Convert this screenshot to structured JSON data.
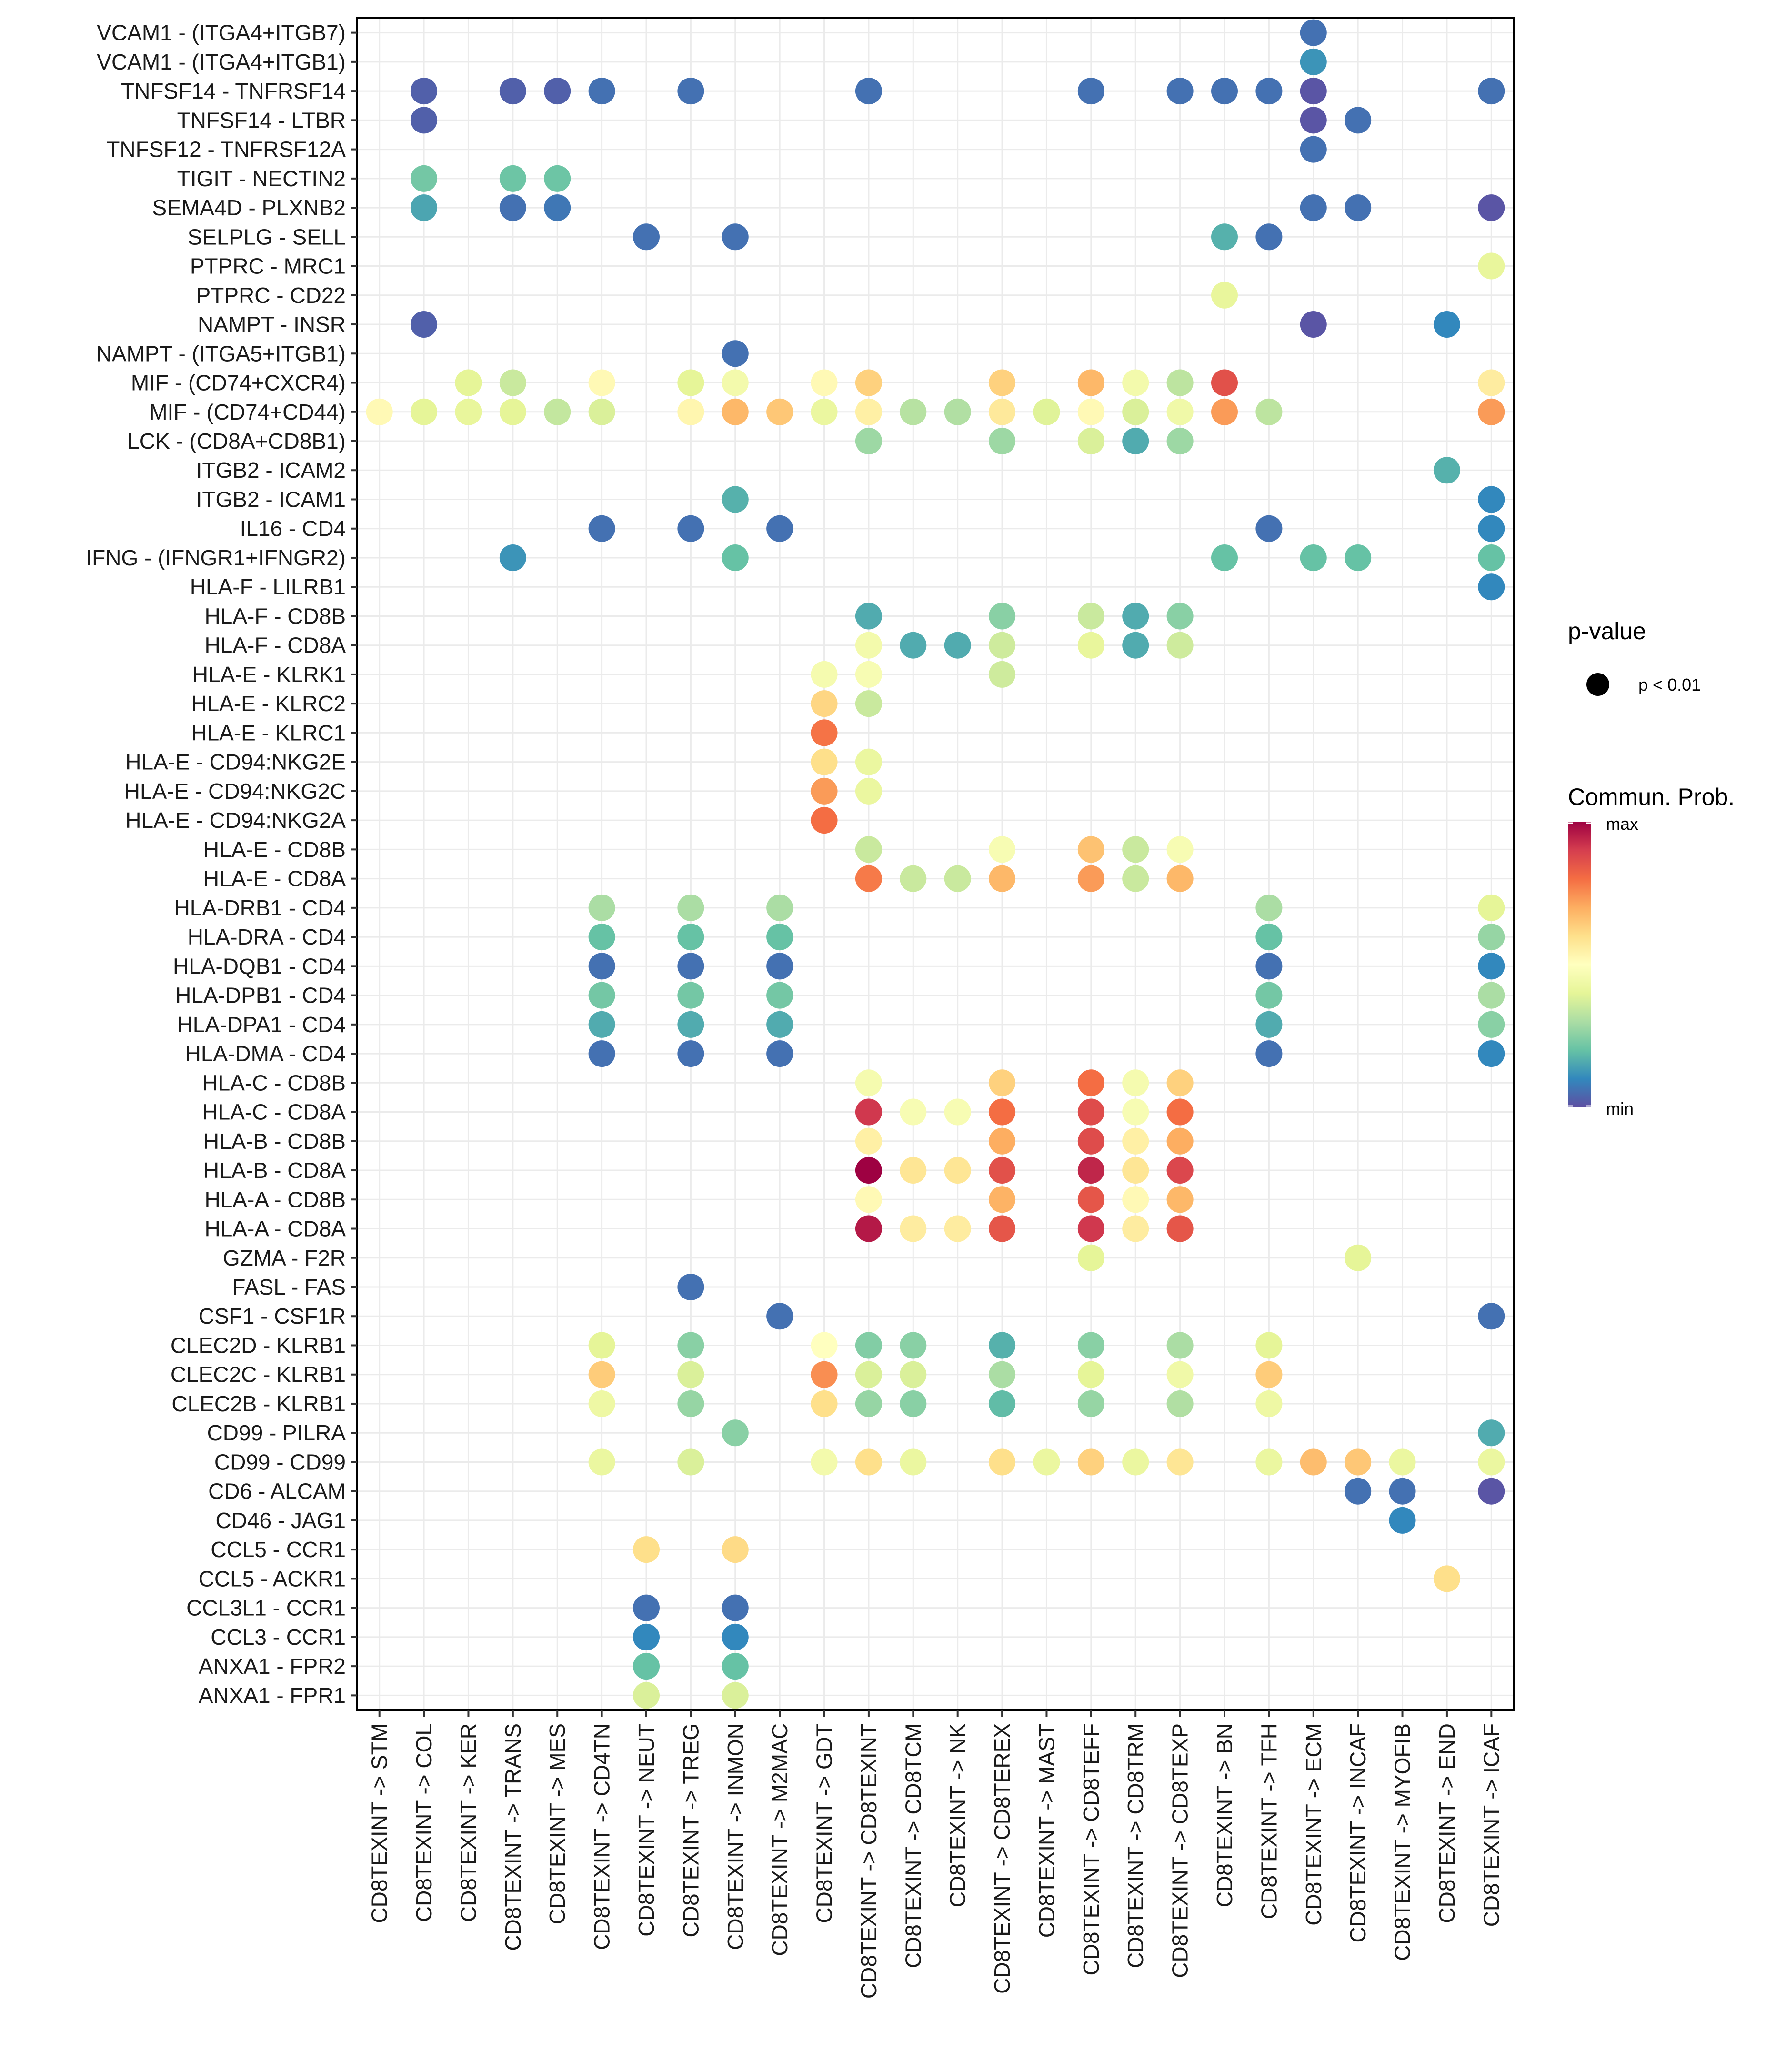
{
  "chart_data": {
    "type": "scatter",
    "subtype": "dot-matrix",
    "title": "",
    "xlabel": "",
    "ylabel": "",
    "grid": true,
    "x_categories": [
      "CD8TEXINT -> STM",
      "CD8TEXINT -> COL",
      "CD8TEXINT -> KER",
      "CD8TEXINT -> TRANS",
      "CD8TEXINT -> MES",
      "CD8TEXINT -> CD4TN",
      "CD8TEXINT -> NEUT",
      "CD8TEXINT -> TREG",
      "CD8TEXINT -> INMON",
      "CD8TEXINT -> M2MAC",
      "CD8TEXINT -> GDT",
      "CD8TEXINT -> CD8TEXINT",
      "CD8TEXINT -> CD8TCM",
      "CD8TEXINT -> NK",
      "CD8TEXINT -> CD8TEREX",
      "CD8TEXINT -> MAST",
      "CD8TEXINT -> CD8TEFF",
      "CD8TEXINT -> CD8TRM",
      "CD8TEXINT -> CD8TEXP",
      "CD8TEXINT -> BN",
      "CD8TEXINT -> TFH",
      "CD8TEXINT -> ECM",
      "CD8TEXINT -> INCAF",
      "CD8TEXINT -> MYOFIB",
      "CD8TEXINT -> END",
      "CD8TEXINT -> ICAF"
    ],
    "y_categories_top_to_bottom": [
      "VCAM1 - (ITGA4+ITGB7)",
      "VCAM1 - (ITGA4+ITGB1)",
      "TNFSF14 - TNFRSF14",
      "TNFSF14 - LTBR",
      "TNFSF12 - TNFRSF12A",
      "TIGIT - NECTIN2",
      "SEMA4D - PLXNB2",
      "SELPLG - SELL",
      "PTPRC - MRC1",
      "PTPRC - CD22",
      "NAMPT - INSR",
      "NAMPT - (ITGA5+ITGB1)",
      "MIF - (CD74+CXCR4)",
      "MIF - (CD74+CD44)",
      "LCK - (CD8A+CD8B1)",
      "ITGB2 - ICAM2",
      "ITGB2 - ICAM1",
      "IL16 - CD4",
      "IFNG - (IFNGR1+IFNGR2)",
      "HLA-F - LILRB1",
      "HLA-F - CD8B",
      "HLA-F - CD8A",
      "HLA-E - KLRK1",
      "HLA-E - KLRC2",
      "HLA-E - KLRC1",
      "HLA-E - CD94:NKG2E",
      "HLA-E - CD94:NKG2C",
      "HLA-E - CD94:NKG2A",
      "HLA-E - CD8B",
      "HLA-E - CD8A",
      "HLA-DRB1 - CD4",
      "HLA-DRA - CD4",
      "HLA-DQB1 - CD4",
      "HLA-DPB1 - CD4",
      "HLA-DPA1 - CD4",
      "HLA-DMA - CD4",
      "HLA-C - CD8B",
      "HLA-C - CD8A",
      "HLA-B - CD8B",
      "HLA-B - CD8A",
      "HLA-A - CD8B",
      "HLA-A - CD8A",
      "GZMA - F2R",
      "FASL - FAS",
      "CSF1 - CSF1R",
      "CLEC2D - KLRB1",
      "CLEC2C - KLRB1",
      "CLEC2B - KLRB1",
      "CD99 - PILRA",
      "CD99 - CD99",
      "CD6 - ALCAM",
      "CD46 - JAG1",
      "CCL5 - CCR1",
      "CCL5 - ACKR1",
      "CCL3L1 - CCR1",
      "CCL3 - CCR1",
      "ANXA1 - FPR2",
      "ANXA1 - FPR1"
    ],
    "value_scale": "normalized communication probability (0 = min, 1 = max)",
    "points_by_row": [
      [
        [
          21,
          0.06
        ]
      ],
      [
        [
          21,
          0.12
        ]
      ],
      [
        [
          1,
          0.03
        ],
        [
          3,
          0.03
        ],
        [
          4,
          0.03
        ],
        [
          5,
          0.06
        ],
        [
          7,
          0.06
        ],
        [
          11,
          0.06
        ],
        [
          16,
          0.06
        ],
        [
          18,
          0.06
        ],
        [
          19,
          0.06
        ],
        [
          20,
          0.06
        ],
        [
          21,
          0.01
        ],
        [
          25,
          0.06
        ]
      ],
      [
        [
          1,
          0.03
        ],
        [
          21,
          0.01
        ],
        [
          22,
          0.06
        ]
      ],
      [
        [
          21,
          0.06
        ]
      ],
      [
        [
          1,
          0.22
        ],
        [
          3,
          0.21
        ],
        [
          4,
          0.21
        ]
      ],
      [
        [
          1,
          0.15
        ],
        [
          3,
          0.06
        ],
        [
          4,
          0.07
        ],
        [
          21,
          0.06
        ],
        [
          22,
          0.06
        ],
        [
          25,
          0.01
        ]
      ],
      [
        [
          6,
          0.06
        ],
        [
          8,
          0.06
        ],
        [
          19,
          0.17
        ],
        [
          20,
          0.06
        ]
      ],
      [
        [
          25,
          0.41
        ]
      ],
      [
        [
          19,
          0.41
        ]
      ],
      [
        [
          1,
          0.03
        ],
        [
          21,
          0.01
        ],
        [
          24,
          0.1
        ]
      ],
      [
        [
          8,
          0.06
        ]
      ],
      [
        [
          2,
          0.4
        ],
        [
          3,
          0.35
        ],
        [
          5,
          0.52
        ],
        [
          7,
          0.4
        ],
        [
          8,
          0.45
        ],
        [
          10,
          0.52
        ],
        [
          11,
          0.63
        ],
        [
          14,
          0.63
        ],
        [
          16,
          0.68
        ],
        [
          17,
          0.45
        ],
        [
          18,
          0.33
        ],
        [
          19,
          0.86
        ],
        [
          25,
          0.56
        ]
      ],
      [
        [
          0,
          0.52
        ],
        [
          1,
          0.4
        ],
        [
          2,
          0.41
        ],
        [
          3,
          0.4
        ],
        [
          4,
          0.34
        ],
        [
          5,
          0.38
        ],
        [
          7,
          0.53
        ],
        [
          8,
          0.68
        ],
        [
          9,
          0.65
        ],
        [
          10,
          0.42
        ],
        [
          11,
          0.55
        ],
        [
          12,
          0.32
        ],
        [
          13,
          0.31
        ],
        [
          14,
          0.57
        ],
        [
          15,
          0.39
        ],
        [
          16,
          0.52
        ],
        [
          17,
          0.38
        ],
        [
          18,
          0.44
        ],
        [
          19,
          0.73
        ],
        [
          20,
          0.33
        ],
        [
          25,
          0.73
        ]
      ],
      [
        [
          11,
          0.28
        ],
        [
          14,
          0.28
        ],
        [
          16,
          0.38
        ],
        [
          17,
          0.16
        ],
        [
          18,
          0.28
        ]
      ],
      [
        [
          24,
          0.17
        ]
      ],
      [
        [
          8,
          0.17
        ],
        [
          25,
          0.1
        ]
      ],
      [
        [
          5,
          0.06
        ],
        [
          7,
          0.06
        ],
        [
          9,
          0.06
        ],
        [
          20,
          0.06
        ],
        [
          25,
          0.1
        ]
      ],
      [
        [
          3,
          0.12
        ],
        [
          8,
          0.2
        ],
        [
          19,
          0.2
        ],
        [
          21,
          0.2
        ],
        [
          22,
          0.2
        ],
        [
          25,
          0.2
        ]
      ],
      [
        [
          25,
          0.1
        ]
      ],
      [
        [
          11,
          0.16
        ],
        [
          14,
          0.25
        ],
        [
          16,
          0.35
        ],
        [
          17,
          0.16
        ],
        [
          18,
          0.25
        ]
      ],
      [
        [
          11,
          0.45
        ],
        [
          12,
          0.16
        ],
        [
          13,
          0.16
        ],
        [
          14,
          0.36
        ],
        [
          16,
          0.41
        ],
        [
          17,
          0.16
        ],
        [
          18,
          0.36
        ]
      ],
      [
        [
          10,
          0.46
        ],
        [
          11,
          0.47
        ],
        [
          14,
          0.36
        ]
      ],
      [
        [
          10,
          0.62
        ],
        [
          11,
          0.35
        ]
      ],
      [
        [
          10,
          0.79
        ]
      ],
      [
        [
          10,
          0.6
        ],
        [
          11,
          0.42
        ]
      ],
      [
        [
          10,
          0.73
        ],
        [
          11,
          0.42
        ]
      ],
      [
        [
          10,
          0.8
        ]
      ],
      [
        [
          11,
          0.35
        ],
        [
          14,
          0.47
        ],
        [
          16,
          0.66
        ],
        [
          17,
          0.35
        ],
        [
          18,
          0.47
        ]
      ],
      [
        [
          11,
          0.78
        ],
        [
          12,
          0.35
        ],
        [
          13,
          0.35
        ],
        [
          14,
          0.68
        ],
        [
          16,
          0.73
        ],
        [
          17,
          0.35
        ],
        [
          18,
          0.68
        ]
      ],
      [
        [
          5,
          0.3
        ],
        [
          7,
          0.3
        ],
        [
          9,
          0.3
        ],
        [
          20,
          0.3
        ],
        [
          25,
          0.4
        ]
      ],
      [
        [
          5,
          0.2
        ],
        [
          7,
          0.2
        ],
        [
          9,
          0.2
        ],
        [
          20,
          0.2
        ],
        [
          25,
          0.27
        ]
      ],
      [
        [
          5,
          0.06
        ],
        [
          7,
          0.06
        ],
        [
          9,
          0.06
        ],
        [
          20,
          0.06
        ],
        [
          25,
          0.1
        ]
      ],
      [
        [
          5,
          0.22
        ],
        [
          7,
          0.22
        ],
        [
          9,
          0.22
        ],
        [
          20,
          0.22
        ],
        [
          25,
          0.3
        ]
      ],
      [
        [
          5,
          0.16
        ],
        [
          7,
          0.16
        ],
        [
          9,
          0.16
        ],
        [
          20,
          0.16
        ],
        [
          25,
          0.25
        ]
      ],
      [
        [
          5,
          0.06
        ],
        [
          7,
          0.06
        ],
        [
          9,
          0.06
        ],
        [
          20,
          0.06
        ],
        [
          25,
          0.1
        ]
      ],
      [
        [
          11,
          0.46
        ],
        [
          14,
          0.63
        ],
        [
          16,
          0.8
        ],
        [
          17,
          0.46
        ],
        [
          18,
          0.63
        ]
      ],
      [
        [
          11,
          0.91
        ],
        [
          12,
          0.47
        ],
        [
          13,
          0.47
        ],
        [
          14,
          0.8
        ],
        [
          16,
          0.87
        ],
        [
          17,
          0.47
        ],
        [
          18,
          0.8
        ]
      ],
      [
        [
          11,
          0.55
        ],
        [
          14,
          0.7
        ],
        [
          16,
          0.87
        ],
        [
          17,
          0.55
        ],
        [
          18,
          0.7
        ]
      ],
      [
        [
          11,
          1.0
        ],
        [
          12,
          0.58
        ],
        [
          13,
          0.58
        ],
        [
          14,
          0.86
        ],
        [
          16,
          0.94
        ],
        [
          17,
          0.58
        ],
        [
          18,
          0.88
        ]
      ],
      [
        [
          11,
          0.52
        ],
        [
          14,
          0.69
        ],
        [
          16,
          0.85
        ],
        [
          17,
          0.52
        ],
        [
          18,
          0.68
        ]
      ],
      [
        [
          11,
          0.96
        ],
        [
          12,
          0.56
        ],
        [
          13,
          0.56
        ],
        [
          14,
          0.85
        ],
        [
          16,
          0.91
        ],
        [
          17,
          0.56
        ],
        [
          18,
          0.85
        ]
      ],
      [
        [
          16,
          0.4
        ],
        [
          22,
          0.4
        ]
      ],
      [
        [
          7,
          0.06
        ]
      ],
      [
        [
          9,
          0.06
        ],
        [
          25,
          0.06
        ]
      ],
      [
        [
          5,
          0.4
        ],
        [
          7,
          0.25
        ],
        [
          10,
          0.5
        ],
        [
          11,
          0.24
        ],
        [
          12,
          0.25
        ],
        [
          14,
          0.17
        ],
        [
          16,
          0.25
        ],
        [
          18,
          0.3
        ],
        [
          20,
          0.4
        ]
      ],
      [
        [
          5,
          0.64
        ],
        [
          7,
          0.38
        ],
        [
          10,
          0.75
        ],
        [
          11,
          0.38
        ],
        [
          12,
          0.38
        ],
        [
          14,
          0.3
        ],
        [
          16,
          0.4
        ],
        [
          18,
          0.44
        ],
        [
          20,
          0.64
        ]
      ],
      [
        [
          5,
          0.43
        ],
        [
          7,
          0.27
        ],
        [
          10,
          0.6
        ],
        [
          11,
          0.27
        ],
        [
          12,
          0.25
        ],
        [
          14,
          0.19
        ],
        [
          16,
          0.27
        ],
        [
          18,
          0.31
        ],
        [
          20,
          0.43
        ]
      ],
      [
        [
          8,
          0.25
        ],
        [
          25,
          0.16
        ]
      ],
      [
        [
          5,
          0.42
        ],
        [
          7,
          0.38
        ],
        [
          10,
          0.45
        ],
        [
          11,
          0.6
        ],
        [
          12,
          0.42
        ],
        [
          14,
          0.6
        ],
        [
          15,
          0.42
        ],
        [
          16,
          0.63
        ],
        [
          17,
          0.42
        ],
        [
          18,
          0.58
        ],
        [
          20,
          0.42
        ],
        [
          21,
          0.67
        ],
        [
          22,
          0.65
        ],
        [
          23,
          0.42
        ],
        [
          25,
          0.42
        ]
      ],
      [
        [
          22,
          0.06
        ],
        [
          23,
          0.06
        ],
        [
          25,
          0.01
        ]
      ],
      [
        [
          23,
          0.1
        ]
      ],
      [
        [
          6,
          0.6
        ],
        [
          8,
          0.61
        ]
      ],
      [
        [
          24,
          0.6
        ]
      ],
      [
        [
          6,
          0.06
        ],
        [
          8,
          0.06
        ]
      ],
      [
        [
          6,
          0.1
        ],
        [
          8,
          0.1
        ]
      ],
      [
        [
          6,
          0.2
        ],
        [
          8,
          0.2
        ]
      ],
      [
        [
          6,
          0.38
        ],
        [
          8,
          0.38
        ]
      ]
    ],
    "colorscale": {
      "name": "Spectral",
      "stops": [
        "#5E4FA2",
        "#3288BD",
        "#66C2A5",
        "#ABDDA4",
        "#E6F598",
        "#FFFFBF",
        "#FEE08B",
        "#FDAE61",
        "#F46D43",
        "#D53E4F",
        "#9E0142"
      ]
    },
    "legend": {
      "position": "right",
      "pvalue_title": "p-value",
      "pvalue_entries": [
        "p < 0.01"
      ],
      "color_title": "Commun. Prob.",
      "color_max_label": "max",
      "color_min_label": "min"
    }
  }
}
